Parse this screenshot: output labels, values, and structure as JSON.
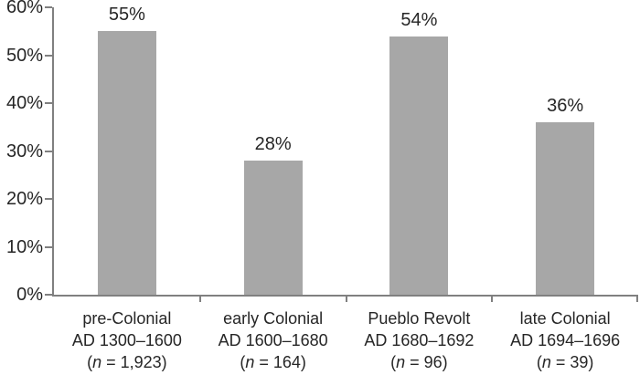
{
  "chart_data": {
    "type": "bar",
    "title": "",
    "xlabel": "",
    "ylabel": "",
    "ylim": [
      0,
      60
    ],
    "grid": false,
    "legend": false,
    "bar_color": "#a7a7a7",
    "axis_color": "#808080",
    "text_color": "#262626",
    "yticks": [
      {
        "value": 0,
        "label": "0%"
      },
      {
        "value": 10,
        "label": "10%"
      },
      {
        "value": 20,
        "label": "20%"
      },
      {
        "value": 30,
        "label": "30%"
      },
      {
        "value": 40,
        "label": "40%"
      },
      {
        "value": 50,
        "label": "50%"
      },
      {
        "value": 60,
        "label": "60%"
      }
    ],
    "values": [
      55,
      28,
      54,
      36
    ],
    "value_labels": [
      "55%",
      "28%",
      "54%",
      "36%"
    ],
    "sample_prefix": "(",
    "sample_symbol": "n",
    "sample_equals": " = ",
    "sample_suffix": ")",
    "categories": [
      {
        "period": "pre-Colonial",
        "dates": "AD 1300–1600",
        "n": "1,923"
      },
      {
        "period": "early Colonial",
        "dates": "AD 1600–1680",
        "n": "164"
      },
      {
        "period": "Pueblo Revolt",
        "dates": "AD 1680–1692",
        "n": "96"
      },
      {
        "period": "late Colonial",
        "dates": "AD 1694–1696",
        "n": "39"
      }
    ]
  }
}
